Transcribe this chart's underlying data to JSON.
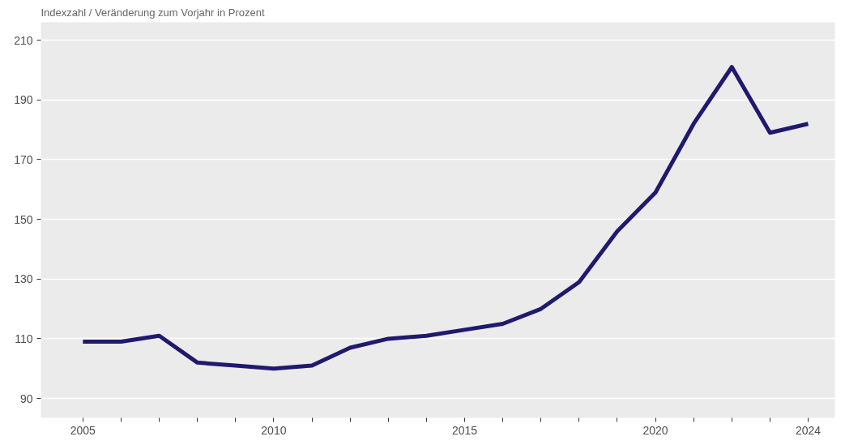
{
  "chart_data": {
    "type": "line",
    "title": "Indexzahl / Veränderung zum Vorjahr in Prozent",
    "x": [
      2005,
      2006,
      2007,
      2008,
      2009,
      2010,
      2011,
      2012,
      2013,
      2014,
      2015,
      2016,
      2017,
      2018,
      2019,
      2020,
      2021,
      2022,
      2023,
      2024
    ],
    "series": [
      {
        "color": "#1f1a6e",
        "values": [
          109,
          109,
          111,
          102,
          101,
          100,
          101,
          107,
          110,
          111,
          113,
          115,
          120,
          129,
          146,
          159,
          182,
          201,
          179,
          182
        ]
      }
    ],
    "xlim": [
      2003.9,
      2024.7
    ],
    "ylim": [
      83.5,
      216
    ],
    "xticks": [
      2005,
      {
        "value": 2006,
        "label": null
      },
      {
        "value": 2007,
        "label": null
      },
      {
        "value": 2008,
        "label": null
      },
      {
        "value": 2009,
        "label": null
      },
      2010,
      {
        "value": 2011,
        "label": null
      },
      {
        "value": 2012,
        "label": null
      },
      {
        "value": 2013,
        "label": null
      },
      {
        "value": 2014,
        "label": null
      },
      2015,
      {
        "value": 2016,
        "label": null
      },
      {
        "value": 2017,
        "label": null
      },
      {
        "value": 2018,
        "label": null
      },
      {
        "value": 2019,
        "label": null
      },
      2020,
      {
        "value": 2021,
        "label": null
      },
      {
        "value": 2022,
        "label": null
      },
      {
        "value": 2023,
        "label": null
      },
      2024
    ],
    "yticks": [
      90,
      110,
      130,
      150,
      170,
      190,
      210
    ],
    "grid": "y",
    "marker": "none",
    "line_style": "solid"
  }
}
